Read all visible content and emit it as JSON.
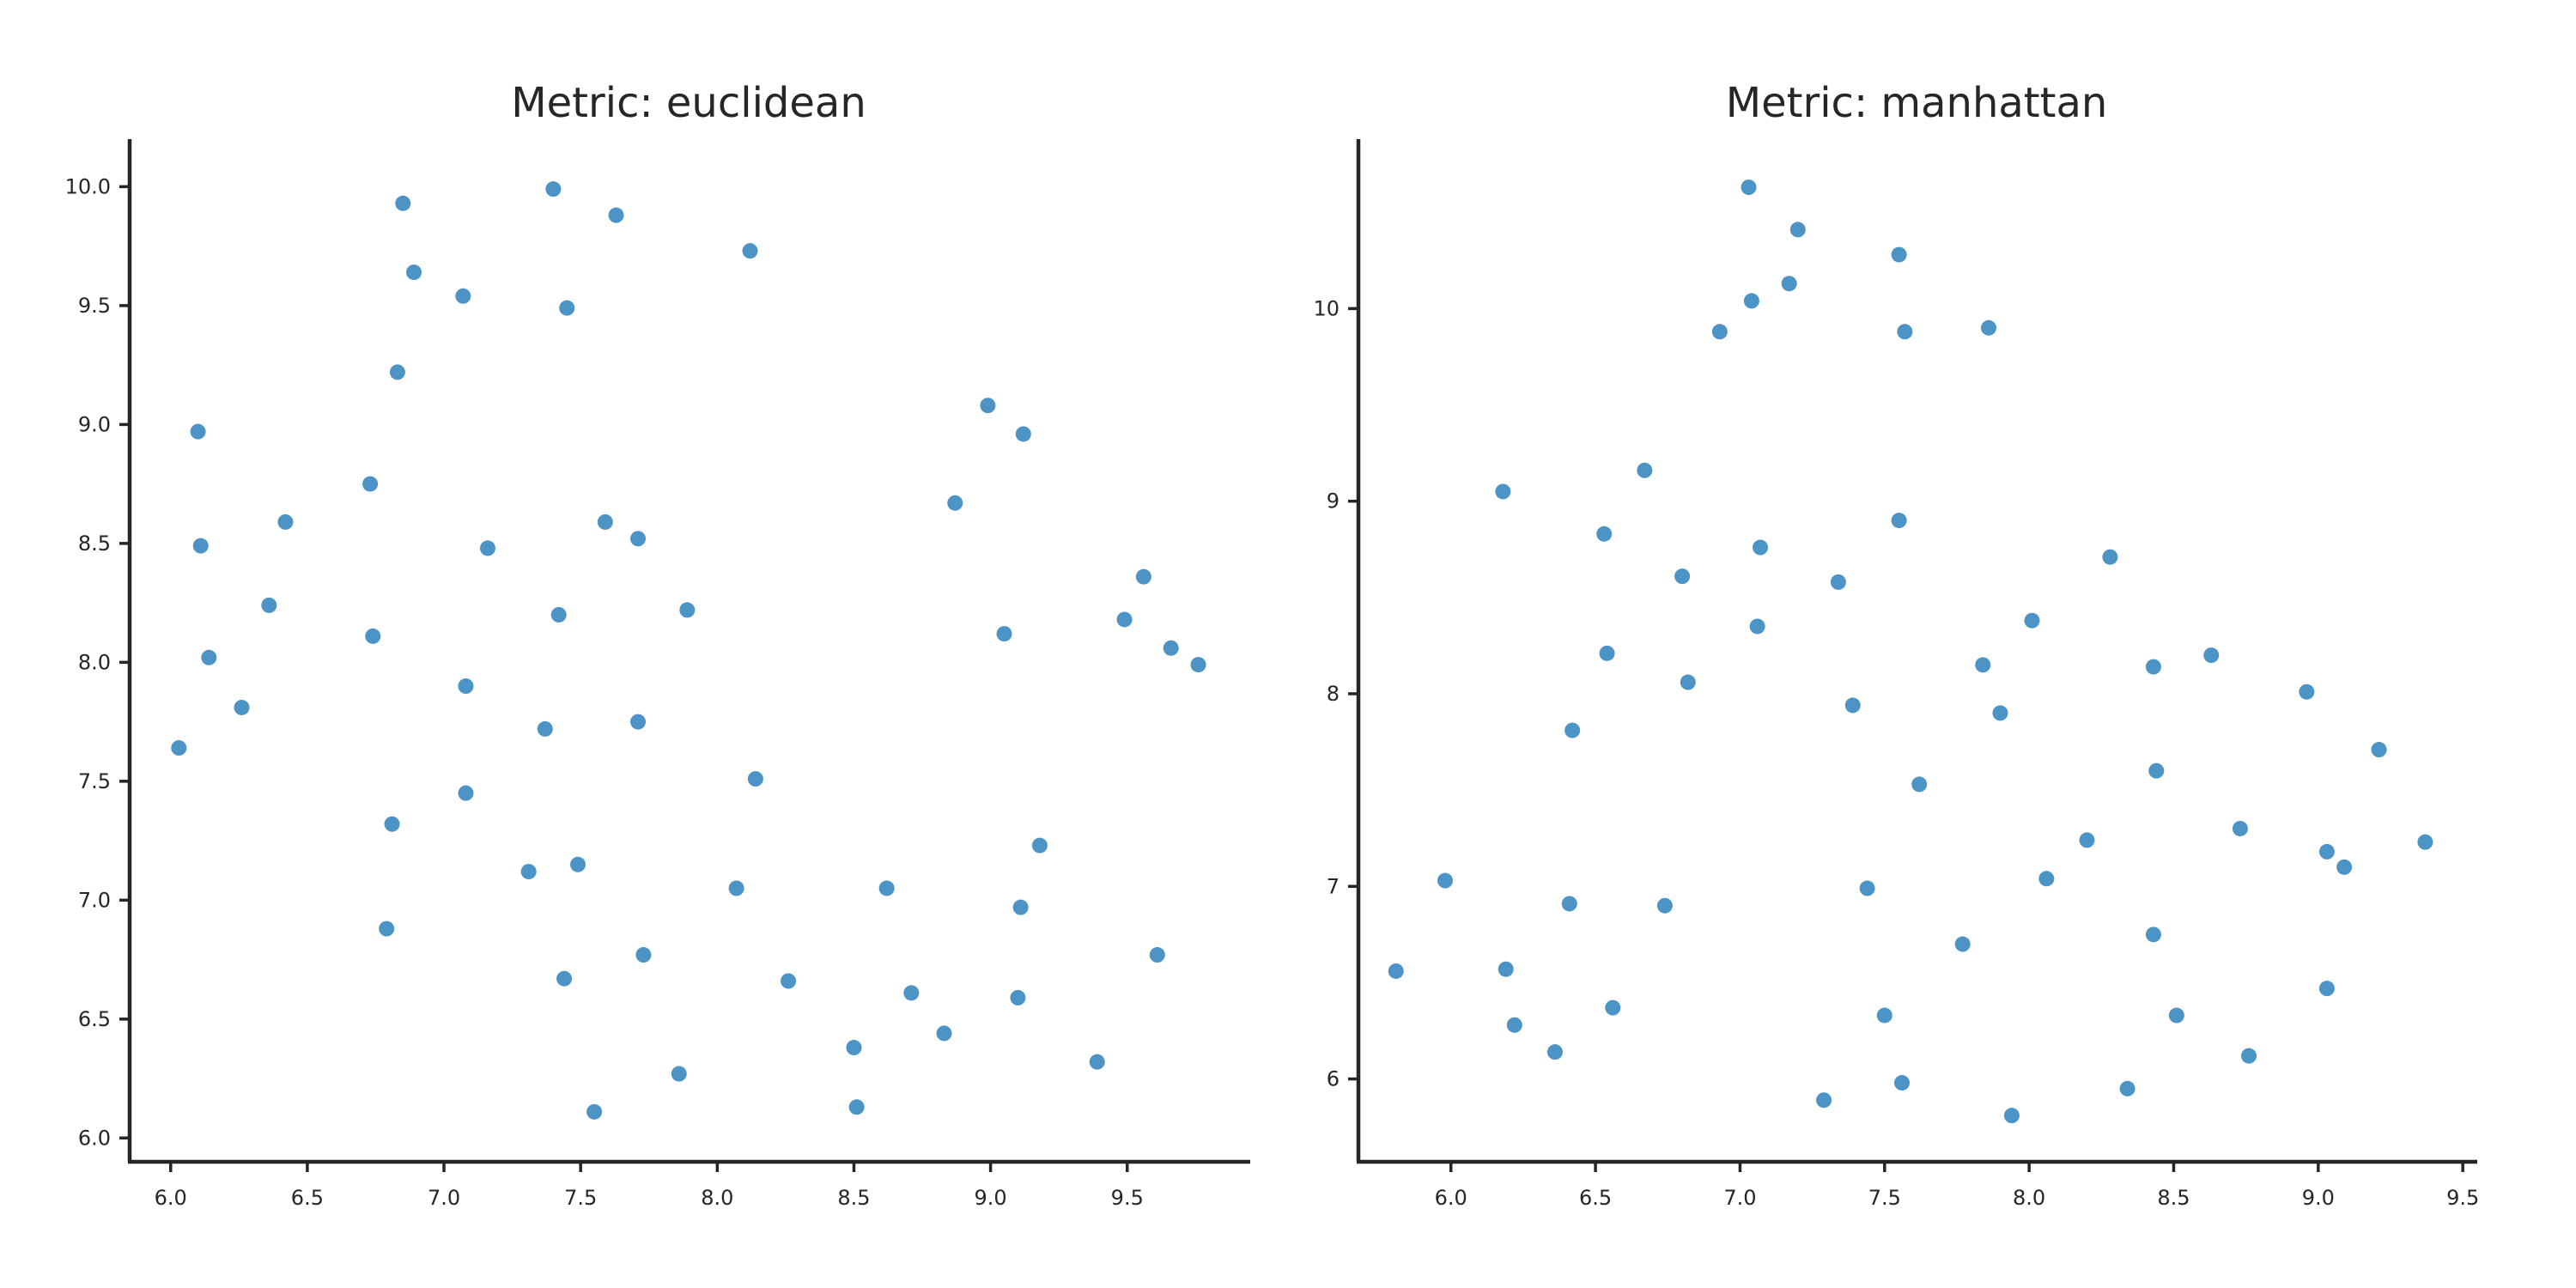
{
  "chart_data": [
    {
      "type": "scatter",
      "title": "Metric: euclidean",
      "xlabel": "",
      "ylabel": "",
      "xlim": [
        5.85,
        9.95
      ],
      "ylim": [
        5.9,
        10.2
      ],
      "xticks": [
        "6.0",
        "6.5",
        "7.0",
        "7.5",
        "8.0",
        "8.5",
        "9.0",
        "9.5"
      ],
      "yticks": [
        "6.0",
        "6.5",
        "7.0",
        "7.5",
        "8.0",
        "8.5",
        "9.0",
        "9.5",
        "10.0"
      ],
      "grid": false,
      "color": "#4c93c6",
      "points": [
        [
          6.85,
          9.93
        ],
        [
          7.4,
          9.99
        ],
        [
          7.63,
          9.88
        ],
        [
          8.12,
          9.73
        ],
        [
          6.89,
          9.64
        ],
        [
          7.07,
          9.54
        ],
        [
          7.45,
          9.49
        ],
        [
          6.83,
          9.22
        ],
        [
          6.1,
          8.97
        ],
        [
          8.99,
          9.08
        ],
        [
          9.12,
          8.96
        ],
        [
          6.73,
          8.75
        ],
        [
          8.87,
          8.67
        ],
        [
          6.11,
          8.49
        ],
        [
          6.42,
          8.59
        ],
        [
          7.16,
          8.48
        ],
        [
          7.59,
          8.59
        ],
        [
          7.71,
          8.52
        ],
        [
          9.56,
          8.36
        ],
        [
          6.36,
          8.24
        ],
        [
          7.42,
          8.2
        ],
        [
          7.89,
          8.22
        ],
        [
          9.49,
          8.18
        ],
        [
          6.74,
          8.11
        ],
        [
          9.05,
          8.12
        ],
        [
          9.66,
          8.06
        ],
        [
          6.14,
          8.02
        ],
        [
          9.76,
          7.99
        ],
        [
          7.08,
          7.9
        ],
        [
          6.26,
          7.81
        ],
        [
          7.37,
          7.72
        ],
        [
          7.71,
          7.75
        ],
        [
          6.03,
          7.64
        ],
        [
          8.14,
          7.51
        ],
        [
          7.08,
          7.45
        ],
        [
          6.81,
          7.32
        ],
        [
          9.18,
          7.23
        ],
        [
          7.31,
          7.12
        ],
        [
          7.49,
          7.15
        ],
        [
          8.07,
          7.05
        ],
        [
          8.62,
          7.05
        ],
        [
          9.11,
          6.97
        ],
        [
          6.79,
          6.88
        ],
        [
          7.73,
          6.77
        ],
        [
          9.61,
          6.77
        ],
        [
          7.44,
          6.67
        ],
        [
          8.26,
          6.66
        ],
        [
          8.71,
          6.61
        ],
        [
          9.1,
          6.59
        ],
        [
          8.83,
          6.44
        ],
        [
          8.5,
          6.38
        ],
        [
          9.39,
          6.32
        ],
        [
          7.86,
          6.27
        ],
        [
          8.51,
          6.13
        ],
        [
          7.55,
          6.11
        ]
      ]
    },
    {
      "type": "scatter",
      "title": "Metric: manhattan",
      "xlabel": "",
      "ylabel": "",
      "xlim": [
        5.68,
        9.55
      ],
      "ylim": [
        5.57,
        10.88
      ],
      "xticks": [
        "6.0",
        "6.5",
        "7.0",
        "7.5",
        "8.0",
        "8.5",
        "9.0",
        "9.5"
      ],
      "yticks": [
        "6",
        "7",
        "8",
        "9",
        "10"
      ],
      "grid": false,
      "color": "#4c93c6",
      "points": [
        [
          7.03,
          10.63
        ],
        [
          7.2,
          10.41
        ],
        [
          7.55,
          10.28
        ],
        [
          7.17,
          10.13
        ],
        [
          7.04,
          10.04
        ],
        [
          6.93,
          9.88
        ],
        [
          7.57,
          9.88
        ],
        [
          7.86,
          9.9
        ],
        [
          6.67,
          9.16
        ],
        [
          6.18,
          9.05
        ],
        [
          6.53,
          8.83
        ],
        [
          7.55,
          8.9
        ],
        [
          7.07,
          8.76
        ],
        [
          8.28,
          8.71
        ],
        [
          6.8,
          8.61
        ],
        [
          7.34,
          8.58
        ],
        [
          7.06,
          8.35
        ],
        [
          8.01,
          8.38
        ],
        [
          6.54,
          8.21
        ],
        [
          8.63,
          8.2
        ],
        [
          7.84,
          8.15
        ],
        [
          8.43,
          8.14
        ],
        [
          6.82,
          8.06
        ],
        [
          8.96,
          8.01
        ],
        [
          7.39,
          7.94
        ],
        [
          7.9,
          7.9
        ],
        [
          6.42,
          7.81
        ],
        [
          9.21,
          7.71
        ],
        [
          8.44,
          7.6
        ],
        [
          7.62,
          7.53
        ],
        [
          8.73,
          7.3
        ],
        [
          8.2,
          7.24
        ],
        [
          9.37,
          7.23
        ],
        [
          9.03,
          7.18
        ],
        [
          9.09,
          7.1
        ],
        [
          5.98,
          7.03
        ],
        [
          8.06,
          7.04
        ],
        [
          7.44,
          6.99
        ],
        [
          6.41,
          6.91
        ],
        [
          6.74,
          6.9
        ],
        [
          8.43,
          6.75
        ],
        [
          7.77,
          6.7
        ],
        [
          5.81,
          6.56
        ],
        [
          6.19,
          6.57
        ],
        [
          9.03,
          6.47
        ],
        [
          6.56,
          6.37
        ],
        [
          7.5,
          6.33
        ],
        [
          8.51,
          6.33
        ],
        [
          6.22,
          6.28
        ],
        [
          6.36,
          6.14
        ],
        [
          8.76,
          6.12
        ],
        [
          7.56,
          5.98
        ],
        [
          8.34,
          5.95
        ],
        [
          7.29,
          5.89
        ],
        [
          7.94,
          5.81
        ]
      ]
    }
  ]
}
